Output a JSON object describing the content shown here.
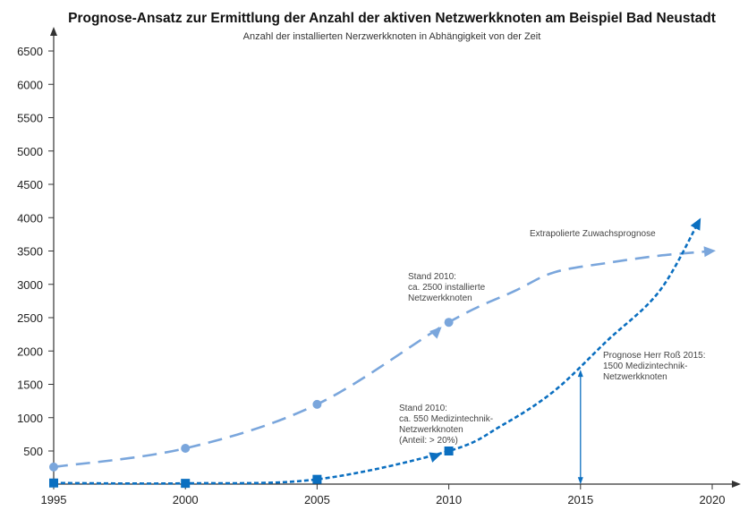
{
  "chart_data": {
    "type": "line",
    "title": "Prognose-Ansatz zur Ermittlung der Anzahl der aktiven Netzwerkknoten am Beispiel Bad Neustadt",
    "subtitle": "Anzahl der installierten Nerzwerkknoten in Abhängigkeit von der Zeit",
    "xlabel": "",
    "ylabel": "",
    "xlim": [
      1995,
      2020
    ],
    "ylim": [
      0,
      6500
    ],
    "x_ticks": [
      "1995",
      "2000",
      "2005",
      "2010",
      "2015",
      "2020"
    ],
    "y_ticks": [
      "500",
      "1000",
      "1500",
      "2000",
      "2500",
      "3000",
      "3500",
      "4000",
      "4500",
      "5000",
      "5500",
      "6000",
      "6500"
    ],
    "grid": false,
    "series": [
      {
        "name": "Installierte Netzwerkknoten",
        "color": "#7aa6dc",
        "style": "dashed",
        "marker": "circle",
        "points": [
          [
            1995,
            260
          ],
          [
            2000,
            540
          ],
          [
            2005,
            1200
          ],
          [
            2010,
            2430
          ]
        ],
        "extrapolation": [
          [
            2010,
            2430
          ],
          [
            2012.5,
            2900
          ],
          [
            2014,
            3180
          ],
          [
            2016,
            3320
          ],
          [
            2018,
            3430
          ],
          [
            2020,
            3500
          ]
        ]
      },
      {
        "name": "Medizintechnik-Netzwerkknoten",
        "color": "#0b6fc0",
        "style": "dotted",
        "marker": "square",
        "points": [
          [
            1995,
            20
          ],
          [
            2000,
            15
          ],
          [
            2005,
            75
          ],
          [
            2010,
            500
          ]
        ],
        "extrapolation": [
          [
            2010,
            500
          ],
          [
            2012,
            880
          ],
          [
            2014,
            1400
          ],
          [
            2016,
            2150
          ],
          [
            2018,
            2900
          ],
          [
            2019.5,
            3950
          ]
        ]
      }
    ],
    "annotations": [
      {
        "id": "extrapolation",
        "lines": [
          "Extrapolierte Zuwachsprognose"
        ]
      },
      {
        "id": "stand_total",
        "lines": [
          "Stand 2010:",
          "ca. 2500 installierte",
          "Netzwerkknoten"
        ]
      },
      {
        "id": "stand_med",
        "lines": [
          "Stand 2010:",
          "ca. 550 Medizintechnik-",
          "Netzwerkknoten",
          "(Anteil: > 20%)"
        ]
      },
      {
        "id": "prognose",
        "lines": [
          "Prognose Herr Roß 2015:",
          "1500 Medizintechnik-",
          "Netzwerkknoten"
        ]
      }
    ],
    "marker_line": {
      "x": 2015,
      "y_from": 0,
      "y_to": 1720
    }
  }
}
